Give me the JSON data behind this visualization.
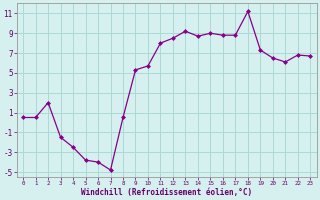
{
  "x": [
    0,
    1,
    2,
    3,
    4,
    5,
    6,
    7,
    8,
    9,
    10,
    11,
    12,
    13,
    14,
    15,
    16,
    17,
    18,
    19,
    20,
    21,
    22,
    23
  ],
  "y": [
    0.5,
    0.5,
    2.0,
    -1.5,
    -2.5,
    -3.8,
    -4.0,
    -4.8,
    0.5,
    5.3,
    5.7,
    8.0,
    8.5,
    9.2,
    8.7,
    9.0,
    8.8,
    8.8,
    11.2,
    7.3,
    6.5,
    6.1,
    6.8,
    6.7
  ],
  "line_color": "#880088",
  "marker": "D",
  "marker_size": 2.0,
  "bg_color": "#d5f0ee",
  "grid_color": "#aadad5",
  "xlabel": "Windchill (Refroidissement éolien,°C)",
  "xlim": [
    -0.5,
    23.5
  ],
  "ylim": [
    -5.5,
    12.0
  ],
  "yticks": [
    -5,
    -3,
    -1,
    1,
    3,
    5,
    7,
    9,
    11
  ],
  "xticks": [
    0,
    1,
    2,
    3,
    4,
    5,
    6,
    7,
    8,
    9,
    10,
    11,
    12,
    13,
    14,
    15,
    16,
    17,
    18,
    19,
    20,
    21,
    22,
    23
  ],
  "tick_color": "#660066",
  "label_color": "#660066"
}
